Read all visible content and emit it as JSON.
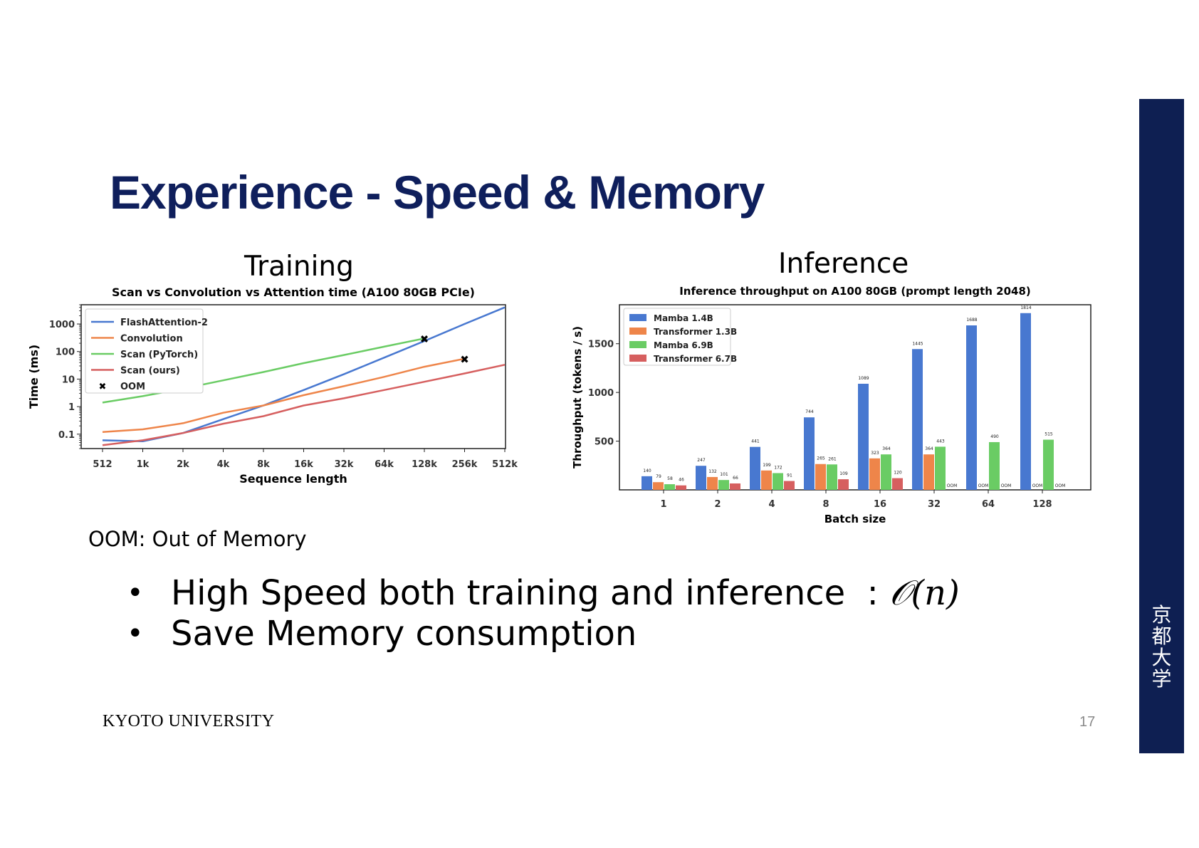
{
  "title": "Experience - Speed & Memory",
  "training_label": "Training",
  "inference_label": "Inference",
  "oom_note": "OOM: Out of Memory",
  "bullets": [
    {
      "text": "High Speed both training and inference  : ",
      "math": "𝒪(𝑛)"
    },
    {
      "text": "Save Memory consumption",
      "math": ""
    }
  ],
  "bullet_symbol": "•",
  "footer": "KYOTO UNIVERSITY",
  "page_number": "17",
  "side_logo_text": "京\n都\n大\n学",
  "colors": {
    "title": "#0f1f5c",
    "sidebar": "#0e1f52",
    "blue": "#4878d0",
    "orange": "#ee854a",
    "green": "#6acc64",
    "red": "#d65f5f"
  },
  "chart_data": [
    {
      "type": "line",
      "title": "Scan vs Convolution vs Attention time (A100 80GB PCIe)",
      "xlabel": "Sequence length",
      "ylabel": "Time (ms)",
      "yscale": "log",
      "ylim": [
        0.03,
        5000
      ],
      "yticks": [
        "0.1",
        "1",
        "10",
        "100",
        "1000"
      ],
      "yticks_values": [
        0.1,
        1,
        10,
        100,
        1000
      ],
      "categories": [
        "512",
        "1k",
        "2k",
        "4k",
        "8k",
        "16k",
        "32k",
        "64k",
        "128k",
        "256k",
        "512k"
      ],
      "series": [
        {
          "name": "FlashAttention-2",
          "color": "#4878d0",
          "values": [
            0.06,
            0.055,
            0.11,
            0.35,
            1.1,
            4,
            15,
            60,
            240,
            1000,
            4000
          ]
        },
        {
          "name": "Convolution",
          "color": "#ee854a",
          "values": [
            0.12,
            0.15,
            0.25,
            0.6,
            1.1,
            2.6,
            5.5,
            12,
            28,
            55,
            null
          ]
        },
        {
          "name": "Scan (PyTorch)",
          "color": "#6acc64",
          "values": [
            1.4,
            2.4,
            4.5,
            9,
            18,
            38,
            75,
            150,
            300,
            null,
            null
          ]
        },
        {
          "name": "Scan (ours)",
          "color": "#d65f5f",
          "values": [
            0.04,
            0.06,
            0.11,
            0.24,
            0.45,
            1.1,
            2,
            4,
            8,
            16,
            33
          ]
        }
      ],
      "oom": [
        {
          "series": "Scan (PyTorch)",
          "x": "128k",
          "y": 300
        },
        {
          "series": "Convolution",
          "x": "256k",
          "y": 55
        }
      ],
      "legend": {
        "position": "top-left",
        "entries": [
          "FlashAttention-2",
          "Convolution",
          "Scan (PyTorch)",
          "Scan (ours)",
          "OOM"
        ]
      }
    },
    {
      "type": "bar",
      "title": "Inference throughput on A100 80GB (prompt length 2048)",
      "xlabel": "Batch size",
      "ylabel": "Throughput (tokens / s)",
      "ylim": [
        0,
        1900
      ],
      "yticks": [
        500,
        1000,
        1500
      ],
      "categories": [
        "1",
        "2",
        "4",
        "8",
        "16",
        "32",
        "64",
        "128"
      ],
      "series": [
        {
          "name": "Mamba 1.4B",
          "color": "#4878d0",
          "values": [
            140,
            247,
            441,
            744,
            1089,
            1445,
            1688,
            1814
          ]
        },
        {
          "name": "Transformer 1.3B",
          "color": "#ee854a",
          "values": [
            79,
            132,
            199,
            265,
            323,
            364,
            null,
            null
          ]
        },
        {
          "name": "Mamba 6.9B",
          "color": "#6acc64",
          "values": [
            58,
            101,
            172,
            261,
            364,
            443,
            490,
            515
          ]
        },
        {
          "name": "Transformer 6.7B",
          "color": "#d65f5f",
          "values": [
            46,
            66,
            91,
            109,
            120,
            null,
            null,
            null
          ]
        }
      ],
      "oom_label": "OOM",
      "legend": {
        "position": "top-left",
        "entries": [
          "Mamba 1.4B",
          "Transformer 1.3B",
          "Mamba 6.9B",
          "Transformer 6.7B"
        ]
      }
    }
  ]
}
